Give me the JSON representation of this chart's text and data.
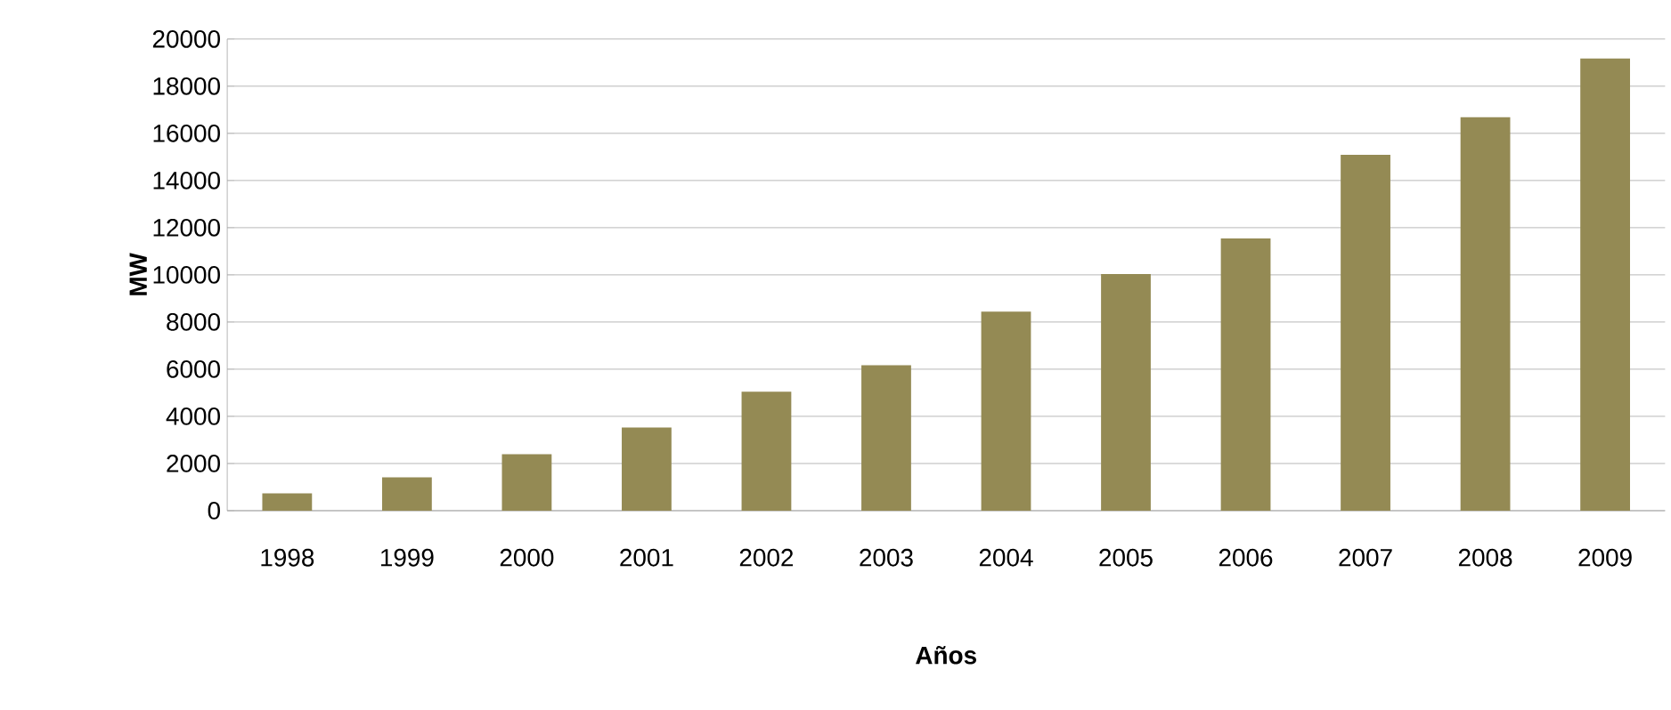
{
  "chart_data": {
    "type": "bar",
    "xlabel": "**Años**",
    "ylabel": "**MW**",
    "categories": [
      "1998",
      "1999",
      "2000",
      "2001",
      "2002",
      "2003",
      "2004",
      "2005",
      "2006",
      "2007",
      "2008",
      "2009"
    ],
    "values": [
      730,
      1410,
      2390,
      3530,
      5040,
      6170,
      8440,
      10030,
      11540,
      15090,
      16680,
      19170
    ],
    "color": "#948a54",
    "ylim": [
      0,
      20000
    ],
    "yticks": [
      0,
      2000,
      4000,
      6000,
      8000,
      10000,
      12000,
      14000,
      16000,
      18000,
      20000
    ],
    "grid": "y"
  }
}
